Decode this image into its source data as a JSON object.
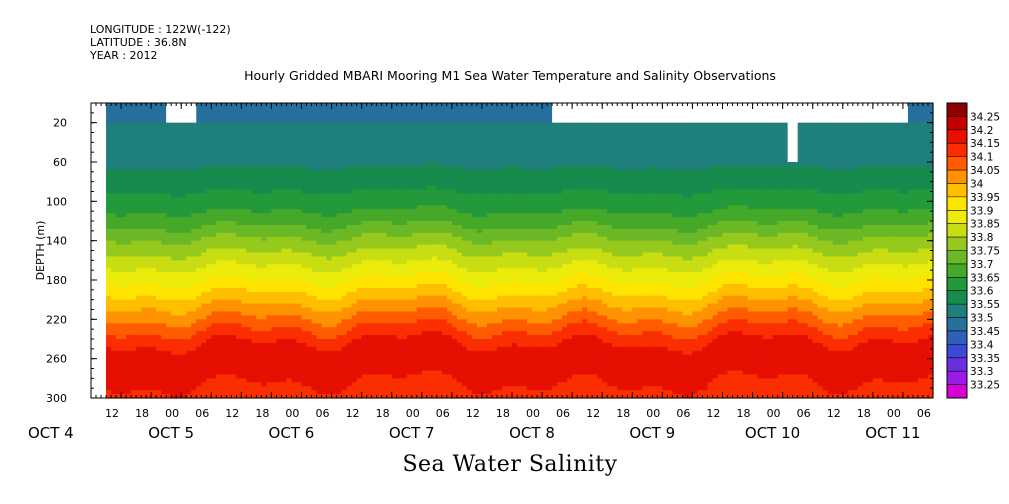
{
  "header": {
    "longitude": "LONGITUDE : 122W(-122)",
    "latitude": "LATITUDE : 36.8N",
    "year": "YEAR : 2012"
  },
  "chart_data": {
    "type": "heatmap",
    "title": "Hourly Gridded MBARI Mooring M1 Sea Water Temperature and Salinity Observations",
    "subtitle": "Sea Water Salinity",
    "ylabel": "DEPTH (m)",
    "xlabel": "",
    "ylim": [
      300,
      0
    ],
    "y_ticks": [
      20,
      60,
      100,
      140,
      180,
      220,
      260,
      300
    ],
    "x_hour_labels": [
      "12",
      "18",
      "00",
      "06",
      "12",
      "18",
      "00",
      "06",
      "12",
      "18",
      "00",
      "06",
      "12",
      "18",
      "00",
      "06",
      "12",
      "18",
      "00",
      "06",
      "12",
      "18",
      "00",
      "06",
      "12",
      "18",
      "00",
      "06"
    ],
    "x_day_labels": [
      "OCT  4",
      "OCT  5",
      "OCT  6",
      "OCT  7",
      "OCT  8",
      "OCT  9",
      "OCT 10",
      "OCT 11"
    ],
    "x_start": "2012-10-04T12:00",
    "x_end": "2012-10-11T12:00",
    "data_start": "2012-10-04T15:00",
    "colorbar": {
      "levels": [
        33.25,
        33.3,
        33.35,
        33.4,
        33.45,
        33.5,
        33.55,
        33.6,
        33.65,
        33.7,
        33.75,
        33.8,
        33.85,
        33.9,
        33.95,
        34,
        34.05,
        34.1,
        34.15,
        34.2,
        34.25
      ],
      "labels": [
        "34.25",
        "34.2",
        "34.15",
        "34.1",
        "34.05",
        "34",
        "33.95",
        "33.9",
        "33.85",
        "33.8",
        "33.75",
        "33.7",
        "33.65",
        "33.6",
        "33.55",
        "33.5",
        "33.45",
        "33.4",
        "33.35",
        "33.3",
        "33.25"
      ],
      "colors": [
        "#d600d6",
        "#9a1ae6",
        "#6a30e0",
        "#3c48d8",
        "#2f5fb8",
        "#276f9c",
        "#1f7f7a",
        "#178a4e",
        "#22993a",
        "#45a829",
        "#6ab826",
        "#96c91d",
        "#c8de12",
        "#ecec0c",
        "#ffe400",
        "#ffbe00",
        "#ff9200",
        "#ff5c00",
        "#fa2e00",
        "#e60f00",
        "#c40000",
        "#8b0000"
      ]
    },
    "profile": {
      "depth": [
        0,
        20,
        40,
        60,
        80,
        100,
        120,
        140,
        160,
        180,
        200,
        220,
        240,
        260,
        280,
        300
      ],
      "salinity": [
        33.47,
        33.5,
        33.52,
        33.54,
        33.58,
        33.62,
        33.68,
        33.76,
        33.83,
        33.9,
        33.98,
        34.06,
        34.14,
        34.2,
        34.16,
        34.12
      ]
    },
    "missing": [
      {
        "t_start": "2012-10-05T03:00",
        "t_end": "2012-10-05T09:00",
        "depth_top": 0,
        "depth_bottom": 20
      },
      {
        "t_start": "2012-10-08T08:00",
        "t_end": "2012-10-11T07:00",
        "depth_top": 0,
        "depth_bottom": 20
      },
      {
        "t_start": "2012-10-10T07:00",
        "t_end": "2012-10-10T09:00",
        "depth_top": 0,
        "depth_bottom": 60
      }
    ]
  }
}
